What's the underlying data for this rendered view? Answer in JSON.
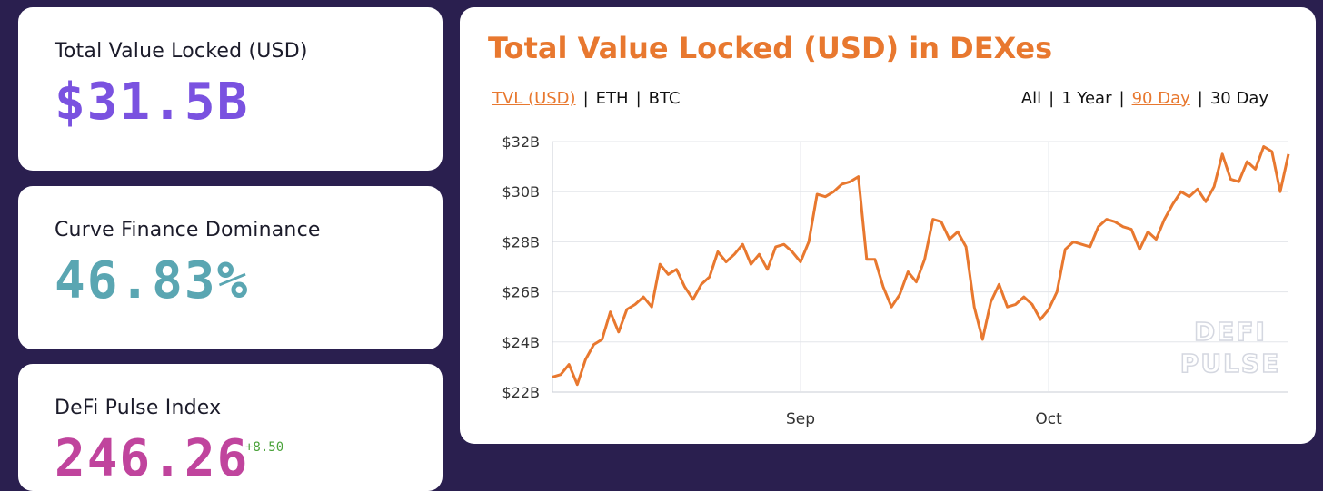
{
  "stats": [
    {
      "label": "Total Value Locked (USD)",
      "value": "$31.5B",
      "color": "#7a52e0"
    },
    {
      "label": "Curve Finance Dominance",
      "value": "46.83%",
      "color": "#5aa6b2"
    },
    {
      "label": "DeFi Pulse Index",
      "value": "246.26",
      "color": "#c0449d",
      "delta": "+8.50",
      "delta_color": "#4aa23a"
    }
  ],
  "chart_panel": {
    "title": "Total Value Locked (USD) in DEXes",
    "denominations": [
      "TVL (USD)",
      "ETH",
      "BTC"
    ],
    "selected_denomination": "TVL (USD)",
    "ranges": [
      "All",
      "1 Year",
      "90 Day",
      "30 Day"
    ],
    "selected_range": "90 Day",
    "watermark_line1": "DEFI",
    "watermark_line2": "PULSE",
    "accent_color": "#e8782f"
  },
  "chart_data": {
    "type": "line",
    "title": "Total Value Locked (USD) in DEXes",
    "xlabel": "",
    "ylabel": "",
    "y_ticks": [
      "$22B",
      "$24B",
      "$26B",
      "$28B",
      "$30B",
      "$32B"
    ],
    "x_ticks": [
      "Sep",
      "Oct"
    ],
    "ylim": [
      22,
      32
    ],
    "y_unit": "B USD",
    "grid": true,
    "legend": "none",
    "series": [
      {
        "color": "#e8782f",
        "x_index_sep": 30,
        "x_index_oct": 60,
        "values": [
          22.6,
          22.7,
          23.1,
          22.3,
          23.3,
          23.9,
          24.1,
          25.2,
          24.4,
          25.3,
          25.5,
          25.8,
          25.4,
          27.1,
          26.7,
          26.9,
          26.2,
          25.7,
          26.3,
          26.6,
          27.6,
          27.2,
          27.5,
          27.9,
          27.1,
          27.5,
          26.9,
          27.8,
          27.9,
          27.6,
          27.2,
          28.0,
          29.9,
          29.8,
          30.0,
          30.3,
          30.4,
          30.6,
          27.3,
          27.3,
          26.2,
          25.4,
          25.9,
          26.8,
          26.4,
          27.3,
          28.9,
          28.8,
          28.1,
          28.4,
          27.8,
          25.4,
          24.1,
          25.6,
          26.3,
          25.4,
          25.5,
          25.8,
          25.5,
          24.9,
          25.3,
          26.0,
          27.7,
          28.0,
          27.9,
          27.8,
          28.6,
          28.9,
          28.8,
          28.6,
          28.5,
          27.7,
          28.4,
          28.1,
          28.9,
          29.5,
          30.0,
          29.8,
          30.1,
          29.6,
          30.2,
          31.5,
          30.5,
          30.4,
          31.2,
          30.9,
          31.8,
          31.6,
          30.0,
          31.5
        ]
      }
    ]
  }
}
